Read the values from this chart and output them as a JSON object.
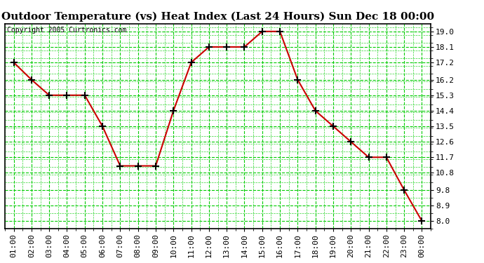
{
  "title": "Outdoor Temperature (vs) Heat Index (Last 24 Hours) Sun Dec 18 00:00",
  "copyright": "Copyright 2005 Curtronics.com",
  "x_labels": [
    "01:00",
    "02:00",
    "03:00",
    "04:00",
    "05:00",
    "06:00",
    "07:00",
    "08:00",
    "09:00",
    "10:00",
    "11:00",
    "12:00",
    "13:00",
    "14:00",
    "15:00",
    "16:00",
    "17:00",
    "18:00",
    "19:00",
    "20:00",
    "21:00",
    "22:00",
    "23:00",
    "00:00"
  ],
  "y_values": [
    17.2,
    16.2,
    15.3,
    15.3,
    15.3,
    13.5,
    11.2,
    11.2,
    11.2,
    14.4,
    17.2,
    18.1,
    18.1,
    18.1,
    19.0,
    19.0,
    16.2,
    14.4,
    13.5,
    12.6,
    11.7,
    11.7,
    9.8,
    8.0
  ],
  "y_ticks": [
    8.0,
    8.9,
    9.8,
    10.8,
    11.7,
    12.6,
    13.5,
    14.4,
    15.3,
    16.2,
    17.2,
    18.1,
    19.0
  ],
  "ylim": [
    7.55,
    19.45
  ],
  "line_color": "#cc0000",
  "marker_color": "#000000",
  "bg_color": "#ffffff",
  "grid_color": "#00cc00",
  "title_fontsize": 11,
  "axis_fontsize": 8,
  "copyright_fontsize": 7
}
